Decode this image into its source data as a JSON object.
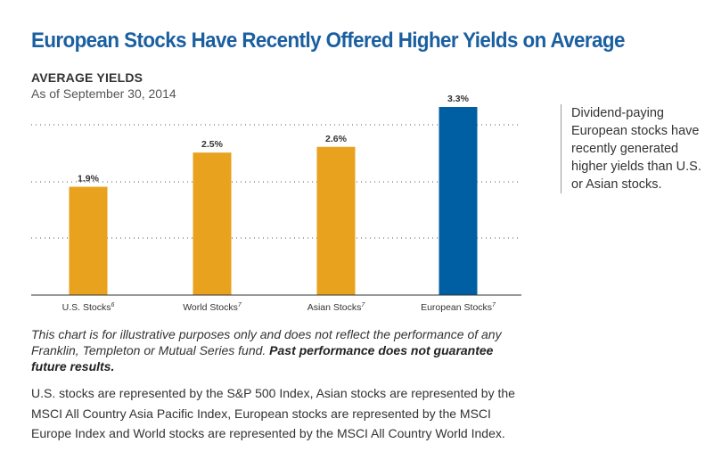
{
  "title": "European Stocks Have Recently Offered Higher Yields on Average",
  "chart_data": {
    "type": "bar",
    "title": "AVERAGE YIELDS",
    "subtitle": "As of September 30, 2014",
    "categories": [
      "U.S. Stocks",
      "World Stocks",
      "Asian Stocks",
      "European Stocks"
    ],
    "category_superscripts": [
      "6",
      "7",
      "7",
      "7"
    ],
    "values": [
      1.9,
      2.5,
      2.6,
      3.3
    ],
    "value_labels": [
      "1.9%",
      "2.5%",
      "2.6%",
      "3.3%"
    ],
    "bar_colors": [
      "#e8a21d",
      "#e8a21d",
      "#e8a21d",
      "#005fa3"
    ],
    "ylim": [
      0,
      3.3
    ],
    "grid": "dotted horizontal lines, no axis tick labels",
    "xlabel": "",
    "ylabel": ""
  },
  "side_note": "Dividend-paying European stocks have recently generated higher yields than U.S. or Asian stocks.",
  "disclaimer": {
    "italic_text": "This chart is for illustrative purposes only and does not reflect the performance of any Franklin, Templeton or Mutual Series fund.",
    "bold_text": "Past performance does not guarantee future results."
  },
  "index_note": "U.S. stocks are represented by the S&P 500 Index, Asian stocks are represented by the MSCI All Country Asia Pacific Index, European stocks are represented by the MSCI Europe Index and World stocks are represented by the MSCI All Country World Index."
}
